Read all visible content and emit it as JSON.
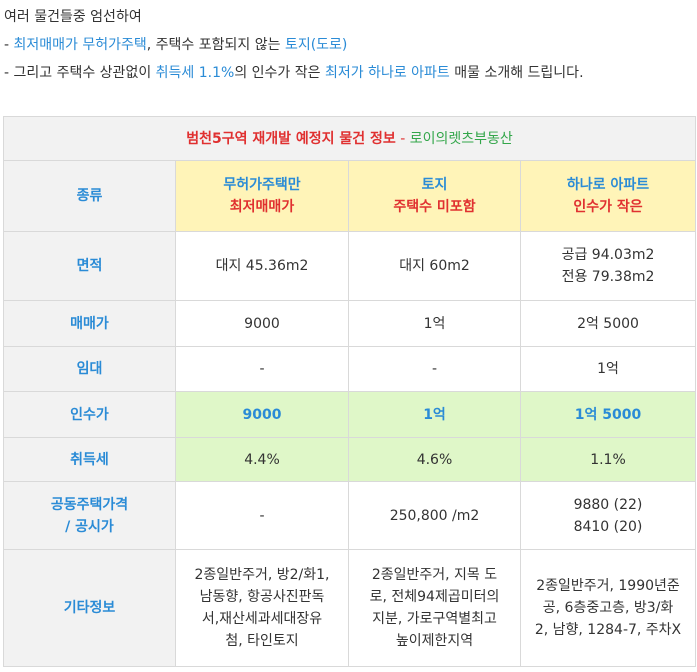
{
  "intro": {
    "line1": "여러 물건들중 엄선하여",
    "line2": {
      "prefix": "- ",
      "link1": "최저매매가 무허가주택",
      "mid": ", 주택수 포함되지 않는 ",
      "link2": "토지(도로)"
    },
    "line3": {
      "prefix": "- 그리고 주택수 상관없이 ",
      "link1": "취득세 1.1%",
      "mid": "의 인수가 작은 ",
      "link2": "최저가 하나로 아파트",
      "suffix": " 매물 소개해 드립니다."
    }
  },
  "table": {
    "title": "범천5구역 재개발 예정지 물건 정보",
    "separator": " - ",
    "agency": "로이의렛츠부동산",
    "columns": [
      {
        "line1": "무허가주택만",
        "line2": "최저매매가"
      },
      {
        "line1": "토지",
        "line2": "주택수 미포함"
      },
      {
        "line1": "하나로 아파트",
        "line2": "인수가 작은"
      }
    ],
    "labels": {
      "type": "종류",
      "area": "면적",
      "price": "매매가",
      "rent": "임대",
      "acquisition": "인수가",
      "tax": "취득세",
      "public_price_1": "공동주택가격",
      "public_price_2": "/ 공시가",
      "other": "기타정보"
    },
    "area": {
      "c1": "대지 45.36m2",
      "c2": "대지 60m2",
      "c3_1": "공급 94.03m2",
      "c3_2": "전용 79.38m2"
    },
    "price": {
      "c1": "9000",
      "c2": "1억",
      "c3": "2억 5000"
    },
    "rent": {
      "c1": "-",
      "c2": "-",
      "c3": "1억"
    },
    "acquisition": {
      "c1": "9000",
      "c2": "1억",
      "c3": "1억 5000"
    },
    "tax": {
      "c1": "4.4%",
      "c2": "4.6%",
      "c3": "1.1%"
    },
    "public_price": {
      "c1": "-",
      "c2": "250,800 /m2",
      "c3_1": "9880 (22)",
      "c3_2": "8410 (20)"
    },
    "other": {
      "c1": [
        "2종일반주거, 방2/화1,",
        "남동향, 항공사진판독",
        "서,재산세과세대장유",
        "첨, 타인토지"
      ],
      "c2": [
        "2종일반주거, 지목 도",
        "로, 전체94제곱미터의",
        "지분, 가로구역별최고",
        "높이제한지역"
      ],
      "c3": [
        "2종일반주거, 1990년준",
        "공, 6층중고층, 방3/화",
        "2, 남향, 1284-7, 주차X"
      ]
    }
  }
}
